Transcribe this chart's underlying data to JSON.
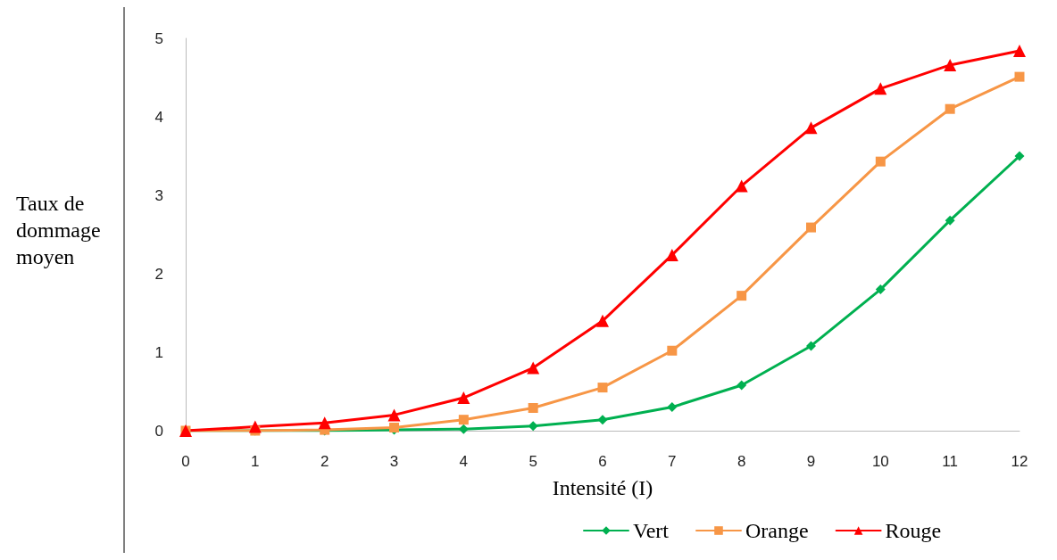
{
  "chart_data": {
    "type": "line",
    "xlabel": "Intensité (I)",
    "ylabel": "Taux de dommage moyen",
    "x": [
      0,
      1,
      2,
      3,
      4,
      5,
      6,
      7,
      8,
      9,
      10,
      11,
      12
    ],
    "series": [
      {
        "name": "Vert",
        "color": "#00b050",
        "marker": "diamond",
        "values": [
          0,
          0,
          0,
          0.01,
          0.02,
          0.06,
          0.14,
          0.3,
          0.58,
          1.08,
          1.8,
          2.68,
          3.5
        ]
      },
      {
        "name": "Orange",
        "color": "#f79646",
        "marker": "square",
        "values": [
          0,
          0,
          0.01,
          0.04,
          0.14,
          0.29,
          0.55,
          1.02,
          1.72,
          2.59,
          3.43,
          4.1,
          4.51
        ]
      },
      {
        "name": "Rouge",
        "color": "#ff0000",
        "marker": "triangle",
        "values": [
          0,
          0.05,
          0.1,
          0.2,
          0.42,
          0.8,
          1.4,
          2.24,
          3.12,
          3.86,
          4.36,
          4.66,
          4.84
        ]
      }
    ],
    "xlim": [
      0,
      12
    ],
    "xticks": [
      0,
      1,
      2,
      3,
      4,
      5,
      6,
      7,
      8,
      9,
      10,
      11,
      12
    ],
    "ylim": [
      0,
      5
    ],
    "yticks": [
      0,
      1,
      2,
      3,
      4,
      5
    ],
    "grid": false,
    "legend": "bottom",
    "line_style": "solid"
  }
}
